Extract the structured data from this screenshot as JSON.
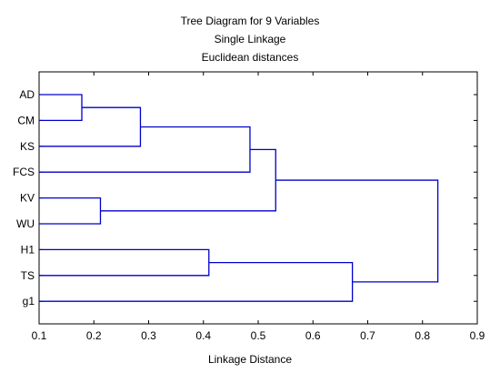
{
  "chart_data": {
    "type": "dendrogram",
    "title": "Tree Diagram for 9   Variables",
    "subtitles": [
      "Single Linkage",
      "Euclidean distances"
    ],
    "xlabel": "Linkage Distance",
    "xlim": [
      0.1,
      0.9
    ],
    "xticks": [
      "0.1",
      "0.2",
      "0.3",
      "0.4",
      "0.5",
      "0.6",
      "0.7",
      "0.8",
      "0.9"
    ],
    "leaves": [
      "AD",
      "CM",
      "KS",
      "FCS",
      "KV",
      "WU",
      "H1",
      "TS",
      "g1"
    ],
    "merges": [
      {
        "a": "AD",
        "b": "CM",
        "distance": 0.178,
        "id": "c1"
      },
      {
        "a": "c1",
        "b": "KS",
        "distance": 0.285,
        "id": "c2"
      },
      {
        "a": "c2",
        "b": "FCS",
        "distance": 0.485,
        "id": "c3"
      },
      {
        "a": "KV",
        "b": "WU",
        "distance": 0.212,
        "id": "c4"
      },
      {
        "a": "c3",
        "b": "c4",
        "distance": 0.532,
        "id": "c5"
      },
      {
        "a": "H1",
        "b": "TS",
        "distance": 0.41,
        "id": "c6"
      },
      {
        "a": "c6",
        "b": "g1",
        "distance": 0.672,
        "id": "c7"
      },
      {
        "a": "c5",
        "b": "c7",
        "distance": 0.828,
        "id": "c8"
      }
    ],
    "line_color": "#0000cc",
    "grid": false
  }
}
